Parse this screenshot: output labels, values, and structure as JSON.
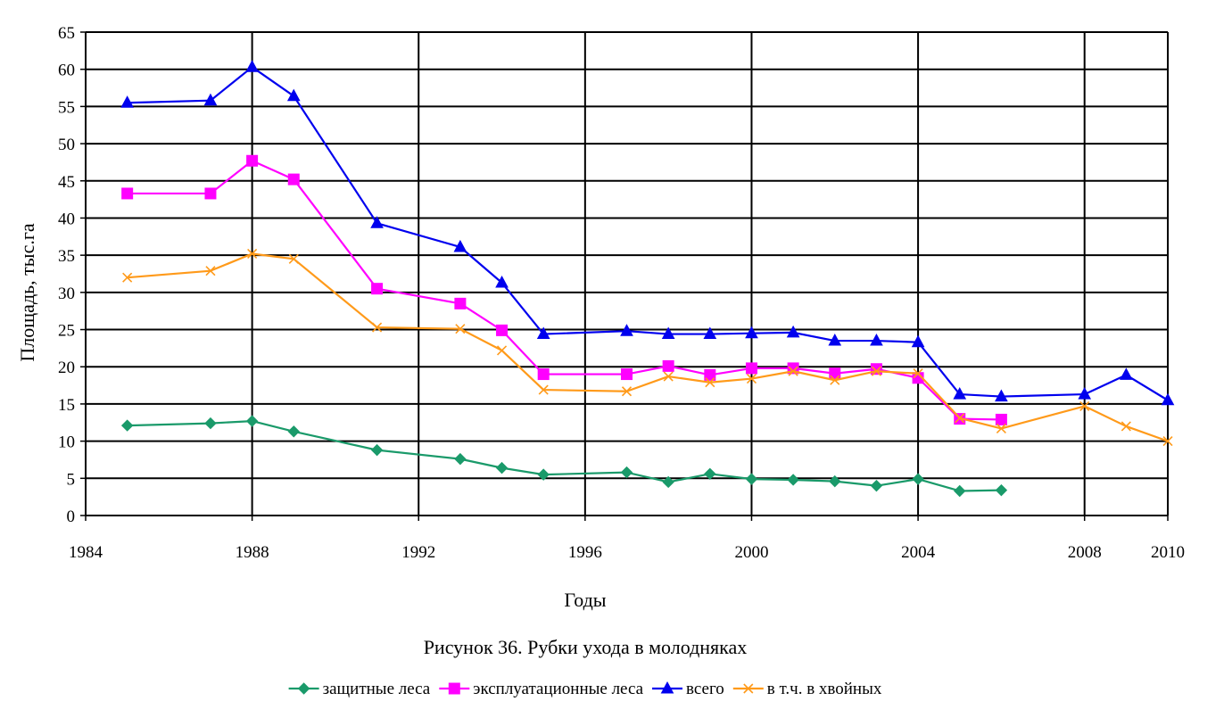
{
  "chart_data": {
    "type": "line",
    "title": "",
    "caption": "Рисунок 36. Рубки ухода в молодняках",
    "xlabel": "Годы",
    "ylabel": "Площадь, тыс.га",
    "xlim": [
      1984,
      2010
    ],
    "ylim": [
      0,
      65
    ],
    "x_ticks": [
      1984,
      1988,
      1992,
      1996,
      2000,
      2004,
      2008,
      2010
    ],
    "y_ticks": [
      0,
      5,
      10,
      15,
      20,
      25,
      30,
      35,
      40,
      45,
      50,
      55,
      60,
      65
    ],
    "grid": true,
    "legend_position": "bottom",
    "series": [
      {
        "name": "защитные леса",
        "color": "#1a9a6a",
        "marker": "diamond",
        "x": [
          1985,
          1987,
          1988,
          1989,
          1991,
          1993,
          1994,
          1995,
          1997,
          1998,
          1999,
          2000,
          2001,
          2002,
          2003,
          2004,
          2005,
          2006
        ],
        "values": [
          12.1,
          12.4,
          12.7,
          11.3,
          8.8,
          7.6,
          6.4,
          5.5,
          5.8,
          4.5,
          5.6,
          4.9,
          4.8,
          4.6,
          4.0,
          4.9,
          3.3,
          3.4
        ]
      },
      {
        "name": "эксплуатационные леса",
        "color": "#ff00ff",
        "marker": "square",
        "x": [
          1985,
          1987,
          1988,
          1989,
          1991,
          1993,
          1994,
          1995,
          1997,
          1998,
          1999,
          2000,
          2001,
          2002,
          2003,
          2004,
          2005,
          2006
        ],
        "values": [
          43.3,
          43.3,
          47.7,
          45.2,
          30.5,
          28.5,
          24.9,
          19.0,
          19.0,
          20.1,
          18.9,
          19.8,
          19.8,
          19.1,
          19.7,
          18.5,
          13.0,
          12.9
        ]
      },
      {
        "name": "всего",
        "color": "#0000ee",
        "marker": "triangle",
        "x": [
          1985,
          1987,
          1988,
          1989,
          1991,
          1993,
          1994,
          1995,
          1997,
          1998,
          1999,
          2000,
          2001,
          2002,
          2003,
          2004,
          2005,
          2006,
          2008,
          2009,
          2010
        ],
        "values": [
          55.5,
          55.8,
          60.3,
          56.4,
          39.3,
          36.1,
          31.3,
          24.4,
          24.8,
          24.4,
          24.4,
          24.5,
          24.6,
          23.5,
          23.5,
          23.3,
          16.3,
          16.0,
          16.3,
          18.9,
          15.5
        ]
      },
      {
        "name": "в т.ч. в хвойных",
        "color": "#ff9a1a",
        "marker": "x",
        "x": [
          1985,
          1987,
          1988,
          1989,
          1991,
          1993,
          1994,
          1995,
          1997,
          1998,
          1999,
          2000,
          2001,
          2002,
          2003,
          2004,
          2005,
          2006,
          2008,
          2009,
          2010
        ],
        "values": [
          32.0,
          32.9,
          35.2,
          34.5,
          25.3,
          25.1,
          22.2,
          16.9,
          16.7,
          18.7,
          17.9,
          18.4,
          19.4,
          18.2,
          19.4,
          19.1,
          13.1,
          11.7,
          14.7,
          12.0,
          10.0
        ]
      }
    ]
  }
}
